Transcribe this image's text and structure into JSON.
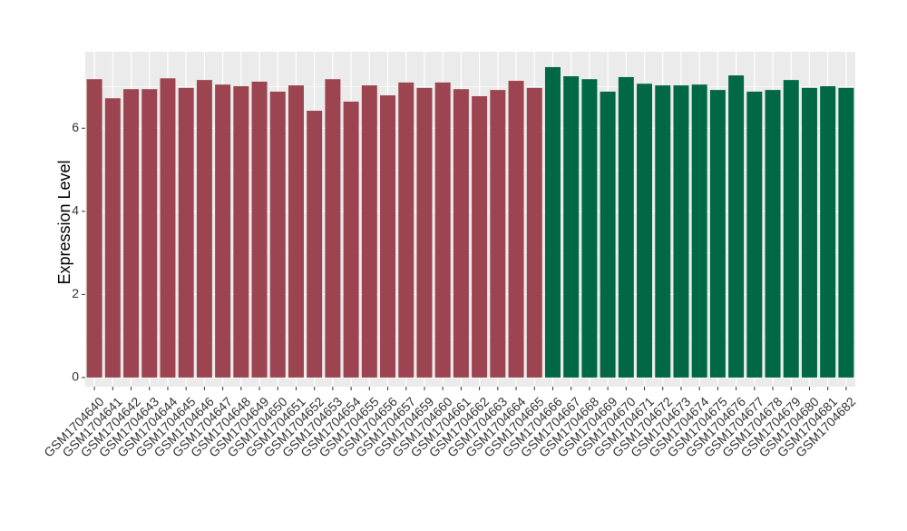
{
  "chart_data": {
    "type": "bar",
    "y_label": "Expression Level",
    "categories": [
      "GSM1704640",
      "GSM1704641",
      "GSM1704642",
      "GSM1704643",
      "GSM1704644",
      "GSM1704645",
      "GSM1704646",
      "GSM1704647",
      "GSM1704648",
      "GSM1704649",
      "GSM1704650",
      "GSM1704651",
      "GSM1704652",
      "GSM1704653",
      "GSM1704654",
      "GSM1704655",
      "GSM1704656",
      "GSM1704657",
      "GSM1704659",
      "GSM1704660",
      "GSM1704661",
      "GSM1704662",
      "GSM1704663",
      "GSM1704664",
      "GSM1704665",
      "GSM1704666",
      "GSM1704667",
      "GSM1704668",
      "GSM1704669",
      "GSM1704670",
      "GSM1704671",
      "GSM1704672",
      "GSM1704673",
      "GSM1704674",
      "GSM1704675",
      "GSM1704676",
      "GSM1704677",
      "GSM1704678",
      "GSM1704679",
      "GSM1704680",
      "GSM1704681",
      "GSM1704682"
    ],
    "values": [
      7.18,
      6.72,
      6.94,
      6.94,
      7.2,
      6.97,
      7.16,
      7.05,
      7.01,
      7.12,
      6.88,
      7.03,
      6.42,
      7.18,
      6.64,
      7.03,
      6.79,
      7.1,
      6.97,
      7.1,
      6.94,
      6.77,
      6.92,
      7.14,
      6.97,
      7.47,
      7.25,
      7.18,
      6.88,
      7.23,
      7.07,
      7.03,
      7.03,
      7.05,
      6.92,
      7.27,
      6.88,
      6.92,
      7.16,
      6.97,
      7.01,
      6.97
    ],
    "colors": [
      "#9c4450",
      "#9c4450",
      "#9c4450",
      "#9c4450",
      "#9c4450",
      "#9c4450",
      "#9c4450",
      "#9c4450",
      "#9c4450",
      "#9c4450",
      "#9c4450",
      "#9c4450",
      "#9c4450",
      "#9c4450",
      "#9c4450",
      "#9c4450",
      "#9c4450",
      "#9c4450",
      "#9c4450",
      "#9c4450",
      "#9c4450",
      "#9c4450",
      "#9c4450",
      "#9c4450",
      "#9c4450",
      "#006845",
      "#006845",
      "#006845",
      "#006845",
      "#006845",
      "#006845",
      "#006845",
      "#006845",
      "#006845",
      "#006845",
      "#006845",
      "#006845",
      "#006845",
      "#006845",
      "#006845",
      "#006845",
      "#006845"
    ],
    "ylim": [
      -0.22,
      7.84
    ],
    "yticks": [
      0,
      2,
      4,
      6
    ],
    "minor_yticks": [
      1,
      3,
      5,
      7
    ],
    "grid": true
  }
}
